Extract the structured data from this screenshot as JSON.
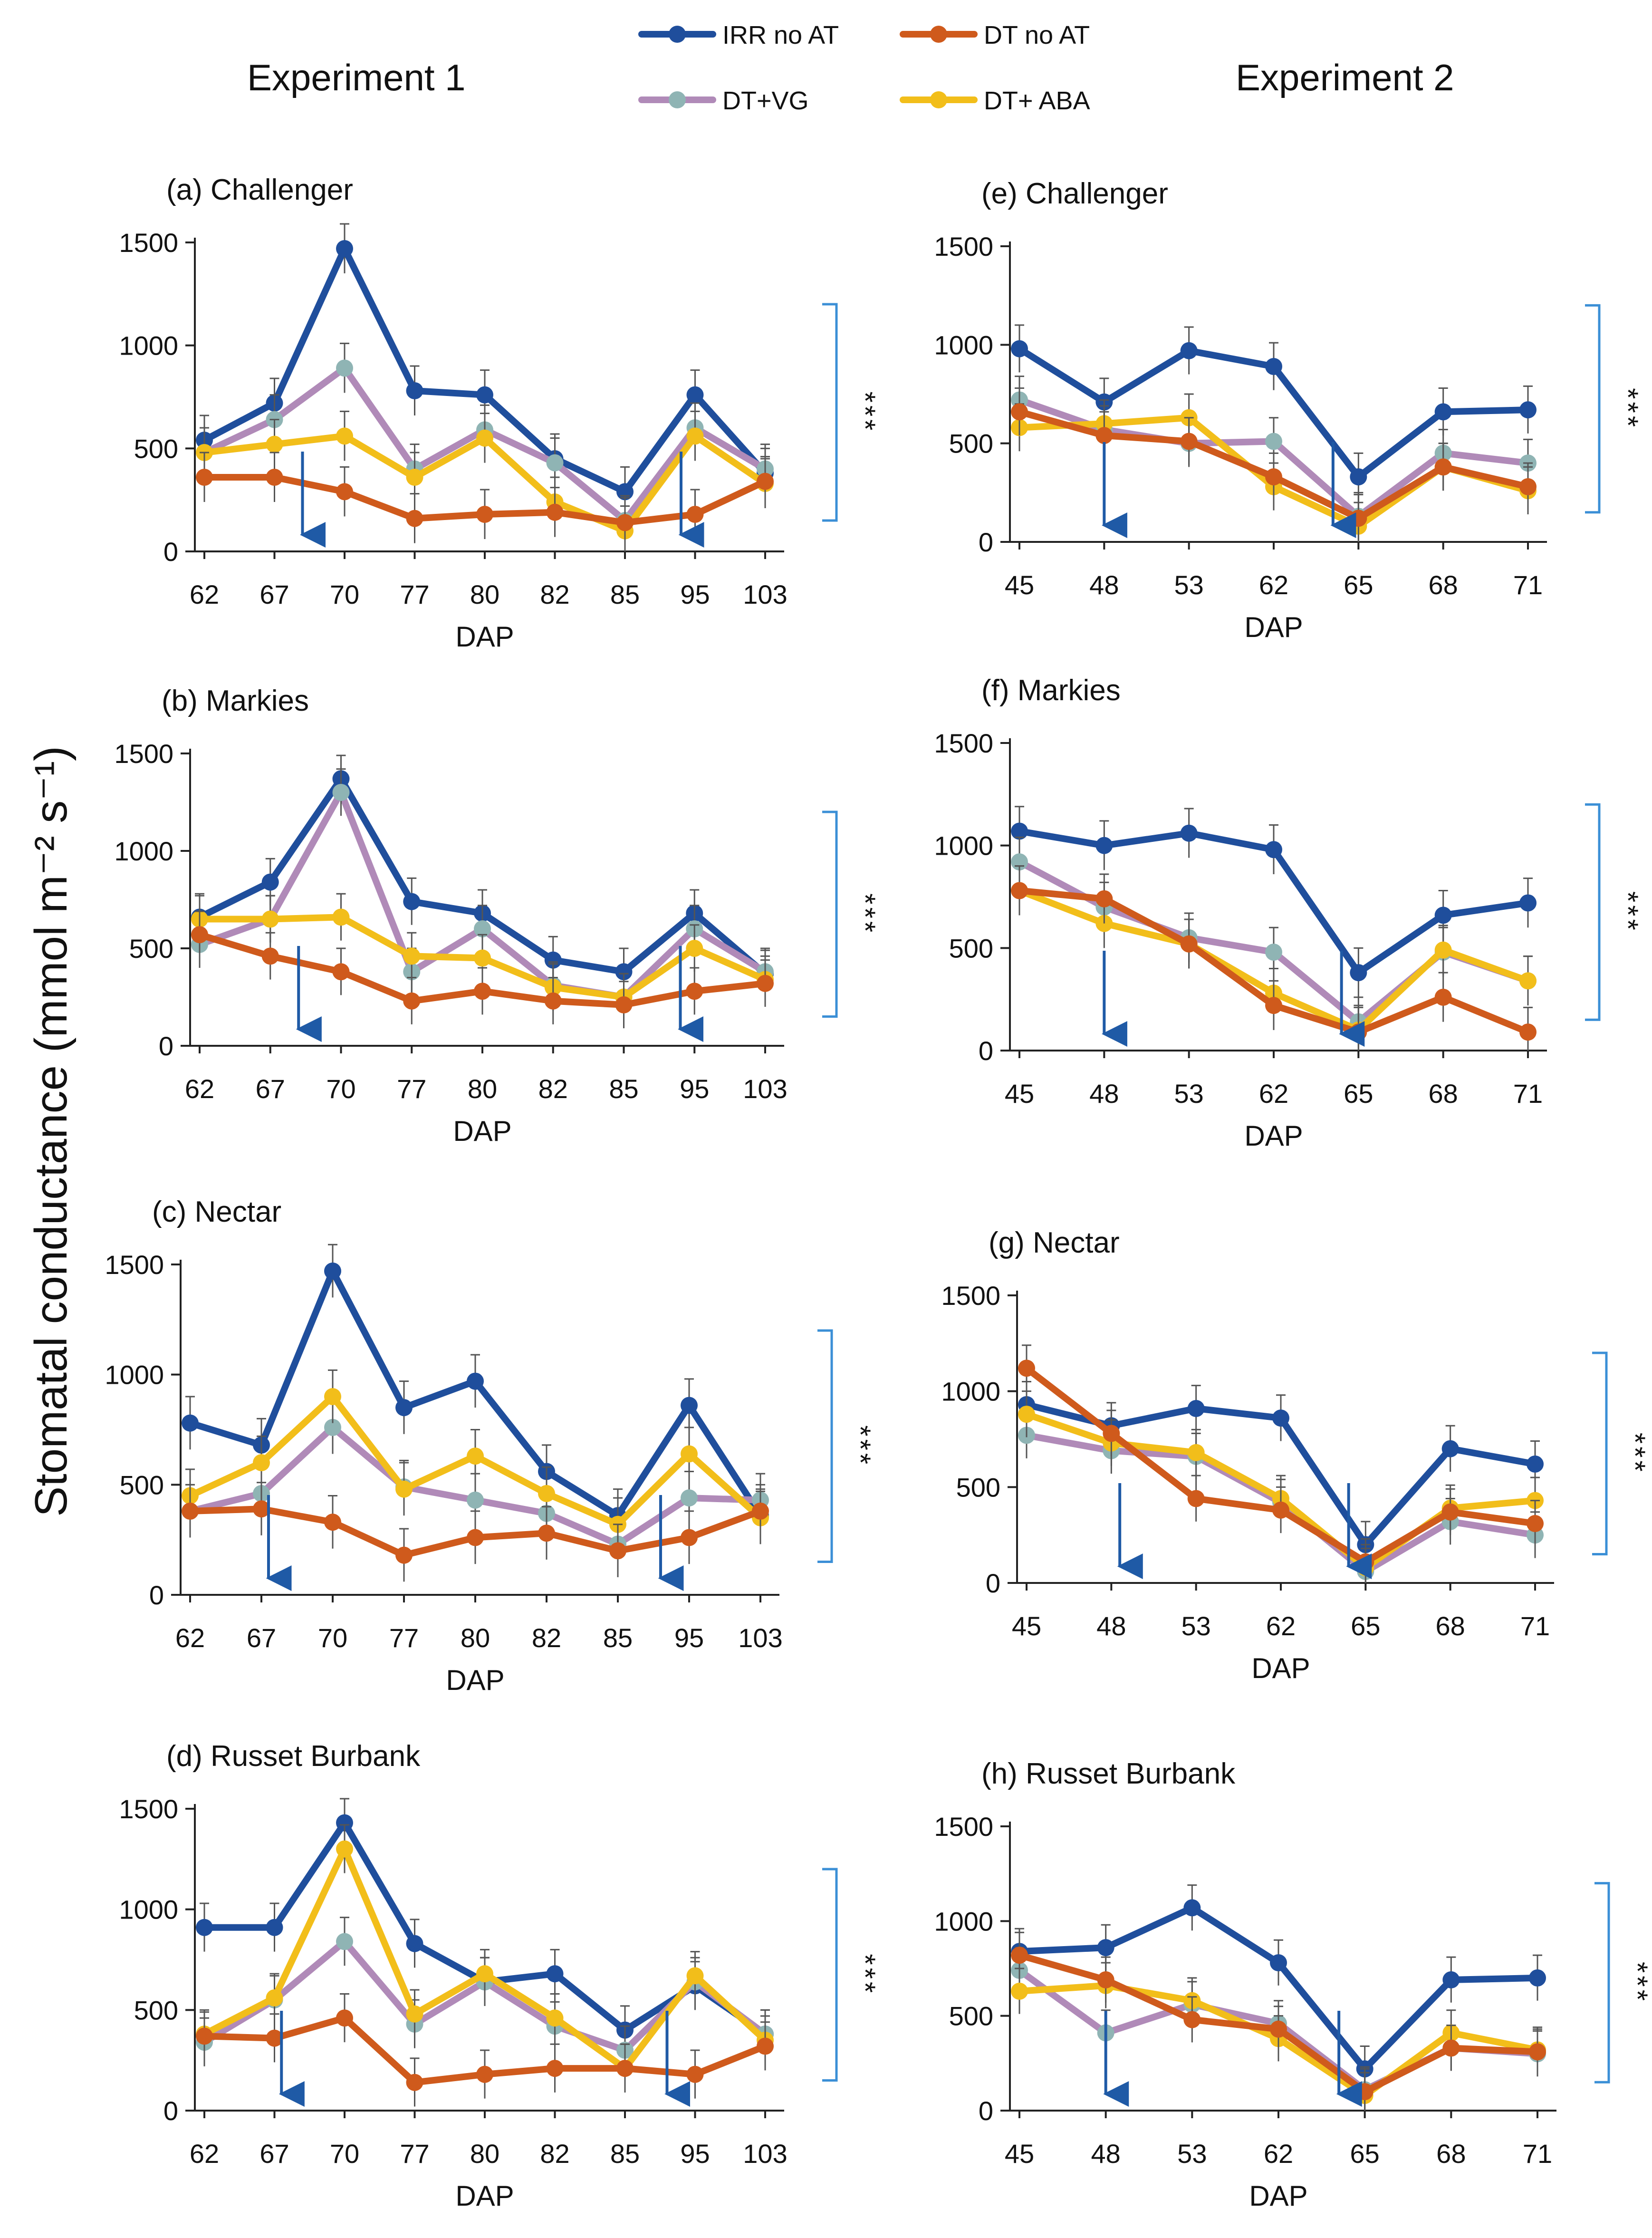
{
  "figure": {
    "experiment_titles": [
      "Experiment 1",
      "Experiment 2"
    ],
    "y_label": "Stomatal conductance (mmol m⁻² s⁻¹)"
  },
  "legend": [
    {
      "name": "IRR no AT",
      "color": "#1f4e9c"
    },
    {
      "name": "DT no AT",
      "color": "#cf5a1c"
    },
    {
      "name": "DT+VG",
      "color": "#b08ab8"
    },
    {
      "name": "DT+ ABA",
      "color": "#f2be1a"
    }
  ],
  "colors": {
    "IRR no AT": "#1f4e9c",
    "DT no AT": "#cf5a1c",
    "DT+VG": "#b08ab8",
    "DT+VG_marker": "#8fb4b4",
    "DT+ ABA": "#f2be1a",
    "arrow": "#1f5aa6",
    "bracket": "#3b8fd6"
  },
  "chart_data": [
    {
      "id": "a",
      "type": "line",
      "title": "(a)  Challenger",
      "xlabel": "DAP",
      "ylabel": "",
      "categories": [
        "62",
        "67",
        "70",
        "77",
        "80",
        "82",
        "85",
        "95",
        "103"
      ],
      "ylim": [
        0,
        1500
      ],
      "yticks": [
        "0",
        "500",
        "1000",
        "1500"
      ],
      "significance": "***",
      "arrows_at_index": [
        1.4,
        6.8
      ],
      "series": [
        {
          "name": "IRR no AT",
          "values": [
            540,
            720,
            1470,
            780,
            760,
            450,
            290,
            760,
            380
          ]
        },
        {
          "name": "DT no AT",
          "values": [
            360,
            360,
            290,
            160,
            180,
            190,
            140,
            180,
            340
          ]
        },
        {
          "name": "DT+VG",
          "values": [
            480,
            640,
            890,
            400,
            590,
            430,
            150,
            600,
            400
          ]
        },
        {
          "name": "DT+ ABA",
          "values": [
            480,
            520,
            560,
            360,
            550,
            240,
            100,
            560,
            330
          ]
        }
      ]
    },
    {
      "id": "b",
      "type": "line",
      "title": "(b)   Markies",
      "xlabel": "DAP",
      "ylabel": "",
      "categories": [
        "62",
        "67",
        "70",
        "77",
        "80",
        "82",
        "85",
        "95",
        "103"
      ],
      "ylim": [
        0,
        1500
      ],
      "yticks": [
        "0",
        "500",
        "1000",
        "1500"
      ],
      "significance": "***",
      "arrows_at_index": [
        1.4,
        6.8
      ],
      "series": [
        {
          "name": "IRR no AT",
          "values": [
            660,
            840,
            1370,
            740,
            680,
            440,
            380,
            680,
            370
          ]
        },
        {
          "name": "DT no AT",
          "values": [
            570,
            460,
            380,
            230,
            280,
            230,
            210,
            280,
            320
          ]
        },
        {
          "name": "DT+VG",
          "values": [
            520,
            650,
            1300,
            380,
            600,
            310,
            250,
            600,
            380
          ]
        },
        {
          "name": "DT+ ABA",
          "values": [
            650,
            650,
            660,
            460,
            450,
            300,
            250,
            500,
            340
          ]
        }
      ]
    },
    {
      "id": "c",
      "type": "line",
      "title": "(c)   Nectar",
      "xlabel": "DAP",
      "ylabel": "",
      "categories": [
        "62",
        "67",
        "70",
        "77",
        "80",
        "82",
        "85",
        "95",
        "103"
      ],
      "ylim": [
        0,
        1500
      ],
      "yticks": [
        "0",
        "500",
        "1000",
        "1500"
      ],
      "significance": "***",
      "arrows_at_index": [
        1.1,
        6.6
      ],
      "series": [
        {
          "name": "IRR no AT",
          "values": [
            780,
            680,
            1470,
            850,
            970,
            560,
            360,
            860,
            360
          ]
        },
        {
          "name": "DT no AT",
          "values": [
            380,
            390,
            330,
            180,
            260,
            280,
            200,
            260,
            380
          ]
        },
        {
          "name": "DT+VG",
          "values": [
            380,
            460,
            760,
            490,
            430,
            370,
            230,
            440,
            430
          ]
        },
        {
          "name": "DT+ ABA",
          "values": [
            450,
            600,
            900,
            480,
            630,
            460,
            320,
            640,
            350
          ]
        }
      ]
    },
    {
      "id": "d",
      "type": "line",
      "title": "(d)    Russet Burbank",
      "xlabel": "DAP",
      "ylabel": "",
      "categories": [
        "62",
        "67",
        "70",
        "77",
        "80",
        "82",
        "85",
        "95",
        "103"
      ],
      "ylim": [
        0,
        1500
      ],
      "yticks": [
        "0",
        "500",
        "1000",
        "1500"
      ],
      "significance": "***",
      "arrows_at_index": [
        1.1,
        6.6
      ],
      "series": [
        {
          "name": "IRR no AT",
          "values": [
            910,
            910,
            1430,
            830,
            640,
            680,
            400,
            620,
            380
          ]
        },
        {
          "name": "DT no AT",
          "values": [
            370,
            360,
            460,
            140,
            180,
            210,
            210,
            180,
            320
          ]
        },
        {
          "name": "DT+VG",
          "values": [
            340,
            550,
            840,
            430,
            640,
            420,
            300,
            640,
            380
          ]
        },
        {
          "name": "DT+ ABA",
          "values": [
            380,
            560,
            1300,
            480,
            680,
            460,
            210,
            670,
            350
          ]
        }
      ]
    },
    {
      "id": "e",
      "type": "line",
      "title": "(e) Challenger",
      "xlabel": "DAP",
      "ylabel": "",
      "categories": [
        "45",
        "48",
        "53",
        "62",
        "65",
        "68",
        "71"
      ],
      "ylim": [
        0,
        1500
      ],
      "yticks": [
        "0",
        "500",
        "1000",
        "1500"
      ],
      "significance": "***",
      "arrows_at_index": [
        1.0,
        3.7
      ],
      "series": [
        {
          "name": "IRR no AT",
          "values": [
            980,
            710,
            970,
            890,
            330,
            660,
            670
          ]
        },
        {
          "name": "DT no AT",
          "values": [
            660,
            540,
            510,
            330,
            120,
            380,
            280
          ]
        },
        {
          "name": "DT+VG",
          "values": [
            720,
            570,
            500,
            510,
            130,
            450,
            400
          ]
        },
        {
          "name": "DT+ ABA",
          "values": [
            580,
            600,
            630,
            280,
            80,
            380,
            260
          ]
        }
      ]
    },
    {
      "id": "f",
      "type": "line",
      "title": "(f) Markies",
      "xlabel": "DAP",
      "ylabel": "",
      "categories": [
        "45",
        "48",
        "53",
        "62",
        "65",
        "68",
        "71"
      ],
      "ylim": [
        0,
        1500
      ],
      "yticks": [
        "0",
        "500",
        "1000",
        "1500"
      ],
      "significance": "***",
      "arrows_at_index": [
        1.0,
        3.8
      ],
      "series": [
        {
          "name": "IRR no AT",
          "values": [
            1070,
            1000,
            1060,
            980,
            380,
            660,
            720
          ]
        },
        {
          "name": "DT no AT",
          "values": [
            780,
            740,
            520,
            220,
            90,
            260,
            90
          ]
        },
        {
          "name": "DT+VG",
          "values": [
            920,
            700,
            550,
            480,
            140,
            480,
            340
          ]
        },
        {
          "name": "DT+ ABA",
          "values": [
            780,
            620,
            520,
            280,
            100,
            490,
            340
          ]
        }
      ]
    },
    {
      "id": "g",
      "type": "line",
      "title": "(g) Nectar",
      "xlabel": "DAP",
      "ylabel": "",
      "categories": [
        "45",
        "48",
        "53",
        "62",
        "65",
        "68",
        "71"
      ],
      "ylim": [
        0,
        1500
      ],
      "yticks": [
        "0",
        "500",
        "1000",
        "1500"
      ],
      "significance": "***",
      "arrows_at_index": [
        1.1,
        3.8
      ],
      "series": [
        {
          "name": "IRR no AT",
          "values": [
            930,
            820,
            910,
            860,
            200,
            700,
            620
          ]
        },
        {
          "name": "DT no AT",
          "values": [
            1120,
            780,
            440,
            380,
            110,
            370,
            310
          ]
        },
        {
          "name": "DT+VG",
          "values": [
            770,
            690,
            660,
            420,
            60,
            320,
            250
          ]
        },
        {
          "name": "DT+ ABA",
          "values": [
            880,
            730,
            680,
            440,
            80,
            390,
            430
          ]
        }
      ]
    },
    {
      "id": "h",
      "type": "line",
      "title": "(h) Russet Burbank",
      "xlabel": "DAP",
      "ylabel": "",
      "categories": [
        "45",
        "48",
        "53",
        "62",
        "65",
        "68",
        "71"
      ],
      "ylim": [
        0,
        1500
      ],
      "yticks": [
        "0",
        "500",
        "1000",
        "1500"
      ],
      "significance": "***",
      "arrows_at_index": [
        1.0,
        3.7
      ],
      "series": [
        {
          "name": "IRR no AT",
          "values": [
            840,
            860,
            1070,
            780,
            220,
            690,
            700
          ]
        },
        {
          "name": "DT no AT",
          "values": [
            820,
            690,
            480,
            430,
            100,
            330,
            310
          ]
        },
        {
          "name": "DT+VG",
          "values": [
            740,
            410,
            560,
            460,
            110,
            330,
            300
          ]
        },
        {
          "name": "DT+ ABA",
          "values": [
            630,
            660,
            580,
            380,
            80,
            410,
            320
          ]
        }
      ]
    }
  ]
}
